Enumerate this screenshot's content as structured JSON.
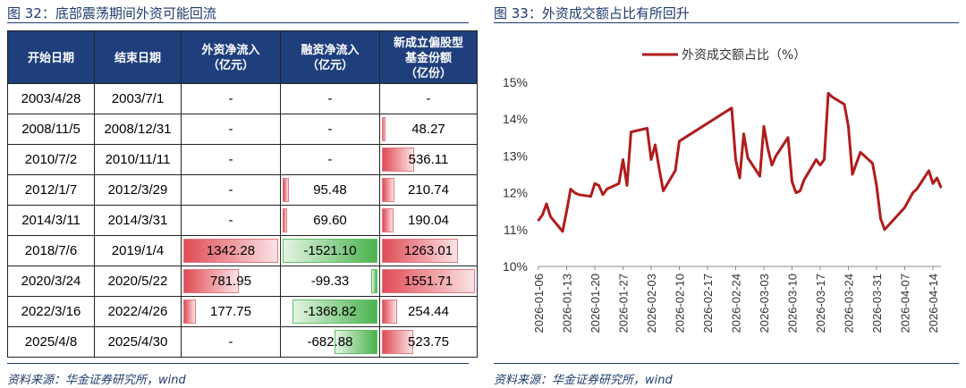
{
  "left_panel": {
    "title": "图 32：底部震荡期间外资可能回流",
    "source": "资料来源：华金证券研究所，wind",
    "headers": [
      "开始日期",
      "结束日期",
      "外资净流入\n（亿元）",
      "融资净流入\n（亿元）",
      "新成立偏股型\n基金份额\n（亿份）"
    ],
    "rows": [
      {
        "start": "2003/4/28",
        "end": "2003/7/1",
        "foreign": "-",
        "margin": "-",
        "fund": "-",
        "foreign_v": null,
        "margin_v": null,
        "fund_v": null
      },
      {
        "start": "2008/11/5",
        "end": "2008/12/31",
        "foreign": "-",
        "margin": "-",
        "fund": "48.27",
        "foreign_v": null,
        "margin_v": null,
        "fund_v": 48.27
      },
      {
        "start": "2010/7/2",
        "end": "2010/11/11",
        "foreign": "-",
        "margin": "-",
        "fund": "536.11",
        "foreign_v": null,
        "margin_v": null,
        "fund_v": 536.11
      },
      {
        "start": "2012/1/7",
        "end": "2012/3/29",
        "foreign": "-",
        "margin": "95.48",
        "fund": "210.74",
        "foreign_v": null,
        "margin_v": 95.48,
        "fund_v": 210.74
      },
      {
        "start": "2014/3/11",
        "end": "2014/3/31",
        "foreign": "-",
        "margin": "69.60",
        "fund": "190.04",
        "foreign_v": null,
        "margin_v": 69.6,
        "fund_v": 190.04
      },
      {
        "start": "2018/7/6",
        "end": "2019/1/4",
        "foreign": "1342.28",
        "margin": "-1521.10",
        "fund": "1263.01",
        "foreign_v": 1342.28,
        "margin_v": -1521.1,
        "fund_v": 1263.01
      },
      {
        "start": "2020/3/24",
        "end": "2020/5/22",
        "foreign": "781.95",
        "margin": "-99.33",
        "fund": "1551.71",
        "foreign_v": 781.95,
        "margin_v": -99.33,
        "fund_v": 1551.71
      },
      {
        "start": "2022/3/16",
        "end": "2022/4/26",
        "foreign": "177.75",
        "margin": "-1368.82",
        "fund": "254.44",
        "foreign_v": 177.75,
        "margin_v": -1368.82,
        "fund_v": 254.44
      },
      {
        "start": "2025/4/8",
        "end": "2025/4/30",
        "foreign": "-",
        "margin": "-682.88",
        "fund": "523.75",
        "foreign_v": null,
        "margin_v": -682.88,
        "fund_v": 523.75
      }
    ]
  },
  "right_panel": {
    "title": "图 33：外资成交额占比有所回升",
    "source": "资料来源：华金证券研究所，wind"
  },
  "colors": {
    "line": "#b01c1c",
    "header": "#1f3f7c",
    "title": "#1f3a6d",
    "bar_red": "#e04b55",
    "bar_green": "#4ab34e"
  },
  "chart_data": {
    "type": "line",
    "series": [
      {
        "name": "外资成交额占比（%）"
      }
    ],
    "ylim": [
      10,
      15
    ],
    "yticks": [
      "10%",
      "11%",
      "12%",
      "13%",
      "14%",
      "15%"
    ],
    "xticks": [
      "2026-01-06",
      "2026-01-13",
      "2026-01-20",
      "2026-01-27",
      "2026-02-03",
      "2026-02-10",
      "2026-02-17",
      "2026-02-24",
      "2026-03-03",
      "2026-03-10",
      "2026-03-17",
      "2026-03-24",
      "2026-03-31",
      "2026-04-07",
      "2026-04-14"
    ],
    "legend": "top-center",
    "points": [
      [
        "2026-01-06",
        11.25
      ],
      [
        "2026-01-07",
        11.4
      ],
      [
        "2026-01-08",
        11.7
      ],
      [
        "2026-01-09",
        11.35
      ],
      [
        "2026-01-12",
        10.95
      ],
      [
        "2026-01-13",
        11.5
      ],
      [
        "2026-01-14",
        12.1
      ],
      [
        "2026-01-15",
        12.0
      ],
      [
        "2026-01-16",
        11.95
      ],
      [
        "2026-01-19",
        11.9
      ],
      [
        "2026-01-20",
        12.25
      ],
      [
        "2026-01-21",
        12.2
      ],
      [
        "2026-01-22",
        11.95
      ],
      [
        "2026-01-23",
        12.1
      ],
      [
        "2026-01-26",
        12.25
      ],
      [
        "2026-01-27",
        12.9
      ],
      [
        "2026-01-28",
        12.2
      ],
      [
        "2026-01-29",
        13.65
      ],
      [
        "2026-02-02",
        13.75
      ],
      [
        "2026-02-03",
        12.9
      ],
      [
        "2026-02-04",
        13.3
      ],
      [
        "2026-02-05",
        12.65
      ],
      [
        "2026-02-06",
        12.05
      ],
      [
        "2026-02-09",
        12.6
      ],
      [
        "2026-02-10",
        13.4
      ],
      [
        "2026-02-23",
        14.3
      ],
      [
        "2026-02-24",
        12.9
      ],
      [
        "2026-02-25",
        12.4
      ],
      [
        "2026-02-26",
        13.6
      ],
      [
        "2026-02-27",
        12.95
      ],
      [
        "2026-03-02",
        12.45
      ],
      [
        "2026-03-03",
        13.8
      ],
      [
        "2026-03-04",
        13.2
      ],
      [
        "2026-03-05",
        12.75
      ],
      [
        "2026-03-06",
        13.0
      ],
      [
        "2026-03-09",
        13.5
      ],
      [
        "2026-03-10",
        12.3
      ],
      [
        "2026-03-11",
        12.0
      ],
      [
        "2026-03-12",
        12.05
      ],
      [
        "2026-03-13",
        12.35
      ],
      [
        "2026-03-16",
        12.9
      ],
      [
        "2026-03-17",
        12.75
      ],
      [
        "2026-03-18",
        12.9
      ],
      [
        "2026-03-19",
        14.7
      ],
      [
        "2026-03-20",
        14.6
      ],
      [
        "2026-03-23",
        14.4
      ],
      [
        "2026-03-24",
        13.8
      ],
      [
        "2026-03-25",
        12.5
      ],
      [
        "2026-03-26",
        12.8
      ],
      [
        "2026-03-27",
        13.1
      ],
      [
        "2026-03-30",
        12.8
      ],
      [
        "2026-03-31",
        12.2
      ],
      [
        "2026-04-01",
        11.3
      ],
      [
        "2026-04-02",
        11.0
      ],
      [
        "2026-04-07",
        11.6
      ],
      [
        "2026-04-09",
        12.0
      ],
      [
        "2026-04-10",
        12.1
      ],
      [
        "2026-04-13",
        12.6
      ],
      [
        "2026-04-14",
        12.25
      ],
      [
        "2026-04-15",
        12.4
      ],
      [
        "2026-04-16",
        12.15
      ]
    ]
  }
}
